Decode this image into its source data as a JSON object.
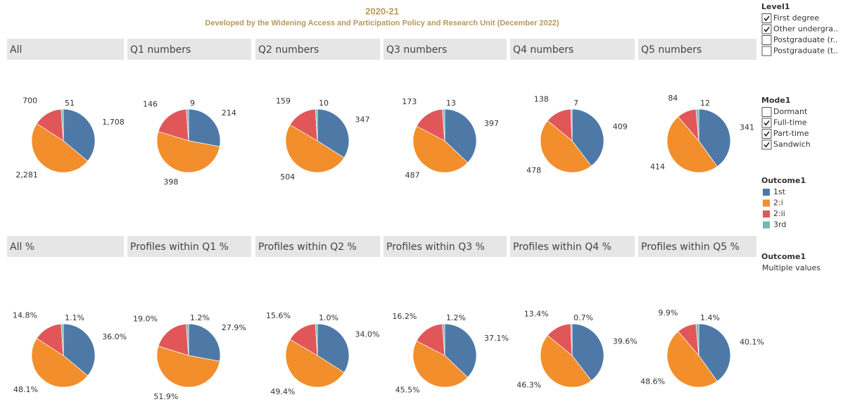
{
  "header": {
    "title": "2020-21",
    "subtitle": "Developed by the Widening Access and Participation Policy and Research Unit (December 2022)"
  },
  "chart_data": [
    {
      "type": "pie",
      "title": "All",
      "values": [
        1708,
        2281,
        700,
        51
      ],
      "value_labels": [
        "1,708",
        "2,281",
        "700",
        "51"
      ]
    },
    {
      "type": "pie",
      "title": "Q1 numbers",
      "values": [
        214,
        398,
        146,
        9
      ]
    },
    {
      "type": "pie",
      "title": "Q2 numbers",
      "values": [
        347,
        504,
        159,
        10
      ]
    },
    {
      "type": "pie",
      "title": "Q3 numbers",
      "values": [
        397,
        487,
        173,
        13
      ]
    },
    {
      "type": "pie",
      "title": "Q4 numbers",
      "values": [
        409,
        478,
        138,
        7
      ]
    },
    {
      "type": "pie",
      "title": "Q5 numbers",
      "values": [
        341,
        414,
        84,
        12
      ]
    },
    {
      "type": "pie",
      "title": "All %",
      "values": [
        36.0,
        48.1,
        14.8,
        1.1
      ],
      "value_labels": [
        "36.0%",
        "48.1%",
        "14.8%",
        "1.1%"
      ]
    },
    {
      "type": "pie",
      "title": "Profiles within Q1 %",
      "values": [
        27.9,
        51.9,
        19.0,
        1.2
      ],
      "value_labels": [
        "27.9%",
        "51.9%",
        "19.0%",
        "1.2%"
      ]
    },
    {
      "type": "pie",
      "title": "Profiles within Q2 %",
      "values": [
        34.0,
        49.4,
        15.6,
        1.0
      ],
      "value_labels": [
        "34.0%",
        "49.4%",
        "15.6%",
        "1.0%"
      ]
    },
    {
      "type": "pie",
      "title": "Profiles within Q3 %",
      "values": [
        37.1,
        45.5,
        16.2,
        1.2
      ],
      "value_labels": [
        "37.1%",
        "45.5%",
        "16.2%",
        "1.2%"
      ]
    },
    {
      "type": "pie",
      "title": "Profiles within Q4 %",
      "values": [
        39.6,
        46.3,
        13.4,
        0.7
      ],
      "value_labels": [
        "39.6%",
        "46.3%",
        "13.4%",
        "0.7%"
      ]
    },
    {
      "type": "pie",
      "title": "Profiles within Q5 %",
      "values": [
        40.1,
        48.6,
        9.9,
        1.4
      ],
      "value_labels": [
        "40.1%",
        "48.6%",
        "9.9%",
        "1.4%"
      ]
    }
  ],
  "filters": [
    {
      "title": "Level1",
      "items": [
        {
          "label": "First degree",
          "checked": true
        },
        {
          "label": "Other undergra..",
          "checked": true
        },
        {
          "label": "Postgraduate (r..",
          "checked": false
        },
        {
          "label": "Postgraduate (t..",
          "checked": false
        }
      ]
    },
    {
      "title": "Mode1",
      "items": [
        {
          "label": "Dormant",
          "checked": false
        },
        {
          "label": "Full-time",
          "checked": true
        },
        {
          "label": "Part-time",
          "checked": true
        },
        {
          "label": "Sandwich",
          "checked": true
        }
      ]
    }
  ],
  "legend": {
    "title": "Outcome1",
    "items": [
      {
        "name": "1st",
        "color": "#4e79a7"
      },
      {
        "name": "2:i",
        "color": "#f28e2b"
      },
      {
        "name": "2:ii",
        "color": "#e15759"
      },
      {
        "name": "3rd",
        "color": "#76b7b2"
      }
    ]
  },
  "outcome_filter": {
    "title": "Outcome1",
    "value": "Multiple values"
  }
}
